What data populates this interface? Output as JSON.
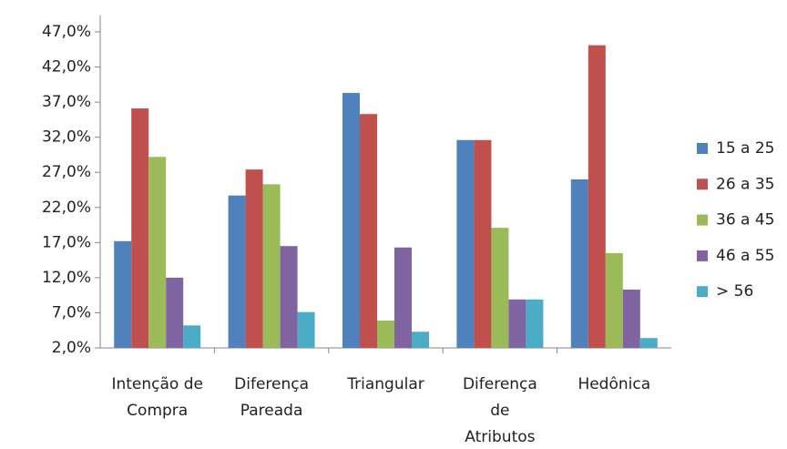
{
  "chart_data": {
    "type": "bar",
    "categories": [
      [
        "Intenção de",
        "Compra"
      ],
      [
        "Diferença",
        "Pareada"
      ],
      [
        "Triangular"
      ],
      [
        "Diferença",
        "de",
        "Atributos"
      ],
      [
        "Hedônica"
      ]
    ],
    "series": [
      {
        "name": "15 a 25",
        "color": "#4f81bd",
        "values": [
          17.2,
          23.7,
          38.3,
          31.6,
          26.0
        ]
      },
      {
        "name": "26 a 35",
        "color": "#c0504d",
        "values": [
          36.1,
          27.4,
          35.3,
          31.6,
          45.1
        ]
      },
      {
        "name": "36 a 45",
        "color": "#9bbb59",
        "values": [
          29.2,
          25.3,
          5.9,
          19.1,
          15.5
        ]
      },
      {
        "name": "46 a 55",
        "color": "#8064a2",
        "values": [
          12.0,
          16.5,
          16.3,
          8.9,
          10.3
        ]
      },
      {
        "name": "> 56",
        "color": "#4bacc6",
        "values": [
          5.2,
          7.1,
          4.3,
          8.9,
          3.4
        ]
      }
    ],
    "ylim": [
      2.0,
      47.0
    ],
    "yticks": [
      {
        "value": 2.0,
        "label": "2,0%"
      },
      {
        "value": 7.0,
        "label": "7,0%"
      },
      {
        "value": 12.0,
        "label": "12,0%"
      },
      {
        "value": 17.0,
        "label": "17,0%"
      },
      {
        "value": 22.0,
        "label": "22,0%"
      },
      {
        "value": 27.0,
        "label": "27,0%"
      },
      {
        "value": 32.0,
        "label": "32,0%"
      },
      {
        "value": 37.0,
        "label": "37,0%"
      },
      {
        "value": 42.0,
        "label": "42,0%"
      },
      {
        "value": 47.0,
        "label": "47,0%"
      }
    ],
    "grid": false,
    "legend": "right"
  }
}
